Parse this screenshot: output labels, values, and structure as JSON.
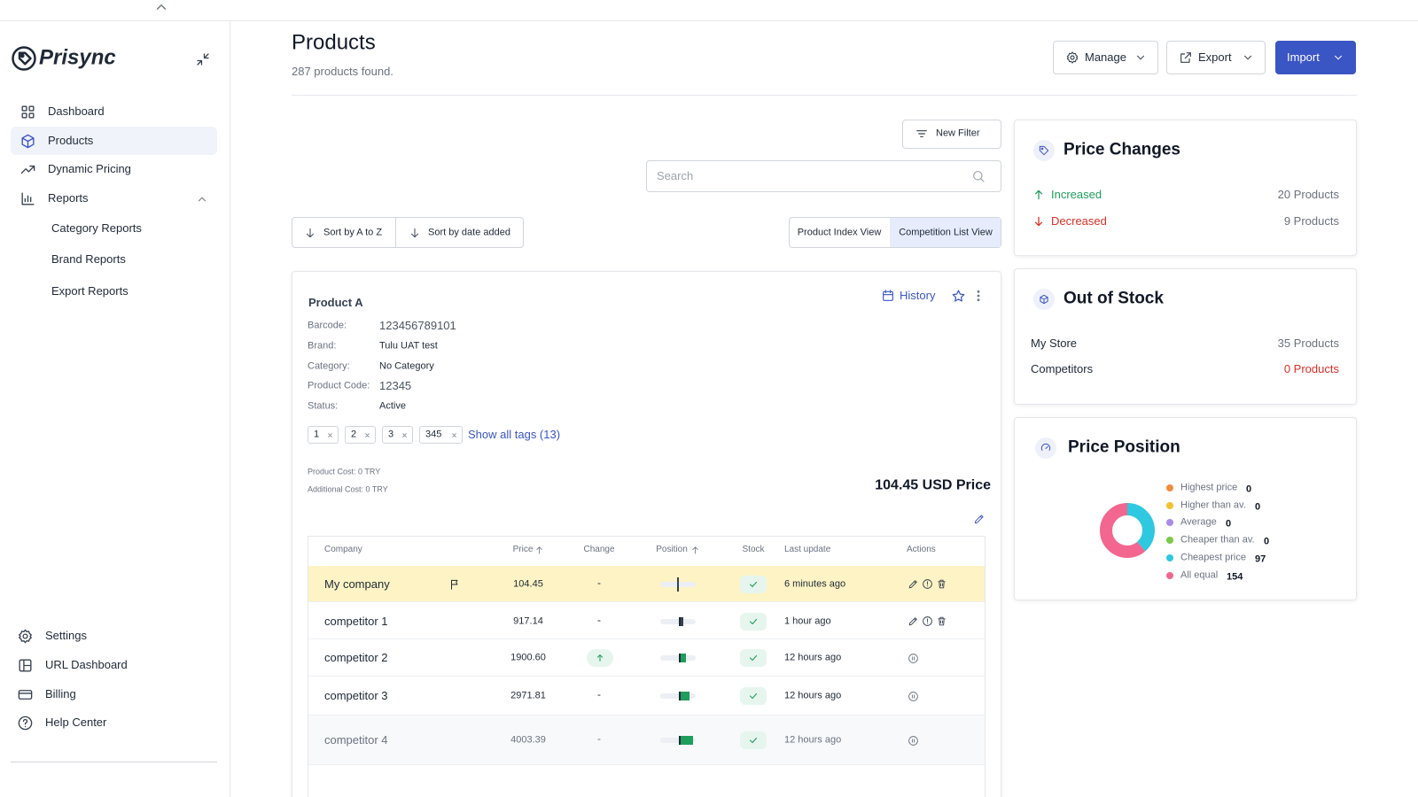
{
  "sidebar": {
    "brand": "Prisync",
    "nav": [
      "Dashboard",
      "Products",
      "Dynamic Pricing",
      "Reports"
    ],
    "reports_sub": [
      "Category Reports",
      "Brand Reports",
      "Export Reports"
    ],
    "bottom": [
      "Settings",
      "URL Dashboard",
      "Billing",
      "Help Center"
    ]
  },
  "header": {
    "title": "Products",
    "subtitle": "287 products found.",
    "buttons": [
      "Manage",
      "Export",
      "Import"
    ]
  },
  "toolbar": {
    "new_filter": "New Filter",
    "search_placeholder": "Search",
    "sort": [
      "Sort by A to Z",
      "Sort by date added"
    ],
    "views": [
      "Product Index View",
      "Competition List View"
    ]
  },
  "product": {
    "name": "Product A",
    "history": "History",
    "fields": [
      {
        "label": "Barcode:",
        "value": "123456789101"
      },
      {
        "label": "Brand:",
        "value": "Tulu UAT test"
      },
      {
        "label": "Category:",
        "value": "No Category"
      },
      {
        "label": "Product Code:",
        "value": "12345"
      },
      {
        "label": "Status:",
        "value": "Active"
      }
    ],
    "tags": [
      "1",
      "2",
      "3",
      "345"
    ],
    "show_tags": "Show all tags (13)",
    "cost": "Product Cost: 0 TRY",
    "additional_cost": "Additional Cost: 0 TRY",
    "price": "104.45 USD Price"
  },
  "table": {
    "columns": [
      "Company",
      "Price",
      "Change",
      "Position",
      "Stock",
      "Last update",
      "Actions"
    ],
    "rows": [
      {
        "company": "My company",
        "price": "104.45",
        "change": "-",
        "last_update": "6 minutes ago"
      },
      {
        "company": "competitor 1",
        "price": "917.14",
        "change": "-",
        "last_update": "1 hour ago"
      },
      {
        "company": "competitor 2",
        "price": "1900.60",
        "last_update": "12 hours ago"
      },
      {
        "company": "competitor 3",
        "price": "2971.81",
        "change": "-",
        "last_update": "12 hours ago"
      },
      {
        "company": "competitor 4",
        "price": "4003.39",
        "change": "-",
        "last_update": "12 hours ago"
      }
    ]
  },
  "price_changes": {
    "title": "Price Changes",
    "rows": [
      {
        "label": "Increased",
        "value": "20 Products"
      },
      {
        "label": "Decreased",
        "value": "9 Products"
      }
    ]
  },
  "out_of_stock": {
    "title": "Out of Stock",
    "rows": [
      {
        "label": "My Store",
        "value": "35 Products"
      },
      {
        "label": "Competitors",
        "value": "0 Products"
      }
    ]
  },
  "price_position": {
    "title": "Price Position",
    "items": [
      {
        "name": "Highest price",
        "value": 0,
        "color": "#f28b3a"
      },
      {
        "name": "Higher than av.",
        "value": 0,
        "color": "#f2c230"
      },
      {
        "name": "Average",
        "value": 0,
        "color": "#a78be8"
      },
      {
        "name": "Cheaper than av.",
        "value": 0,
        "color": "#7cc84a"
      },
      {
        "name": "Cheapest price",
        "value": 97,
        "color": "#2ec8e0"
      },
      {
        "name": "All equal",
        "value": 154,
        "color": "#f2668f"
      }
    ]
  }
}
